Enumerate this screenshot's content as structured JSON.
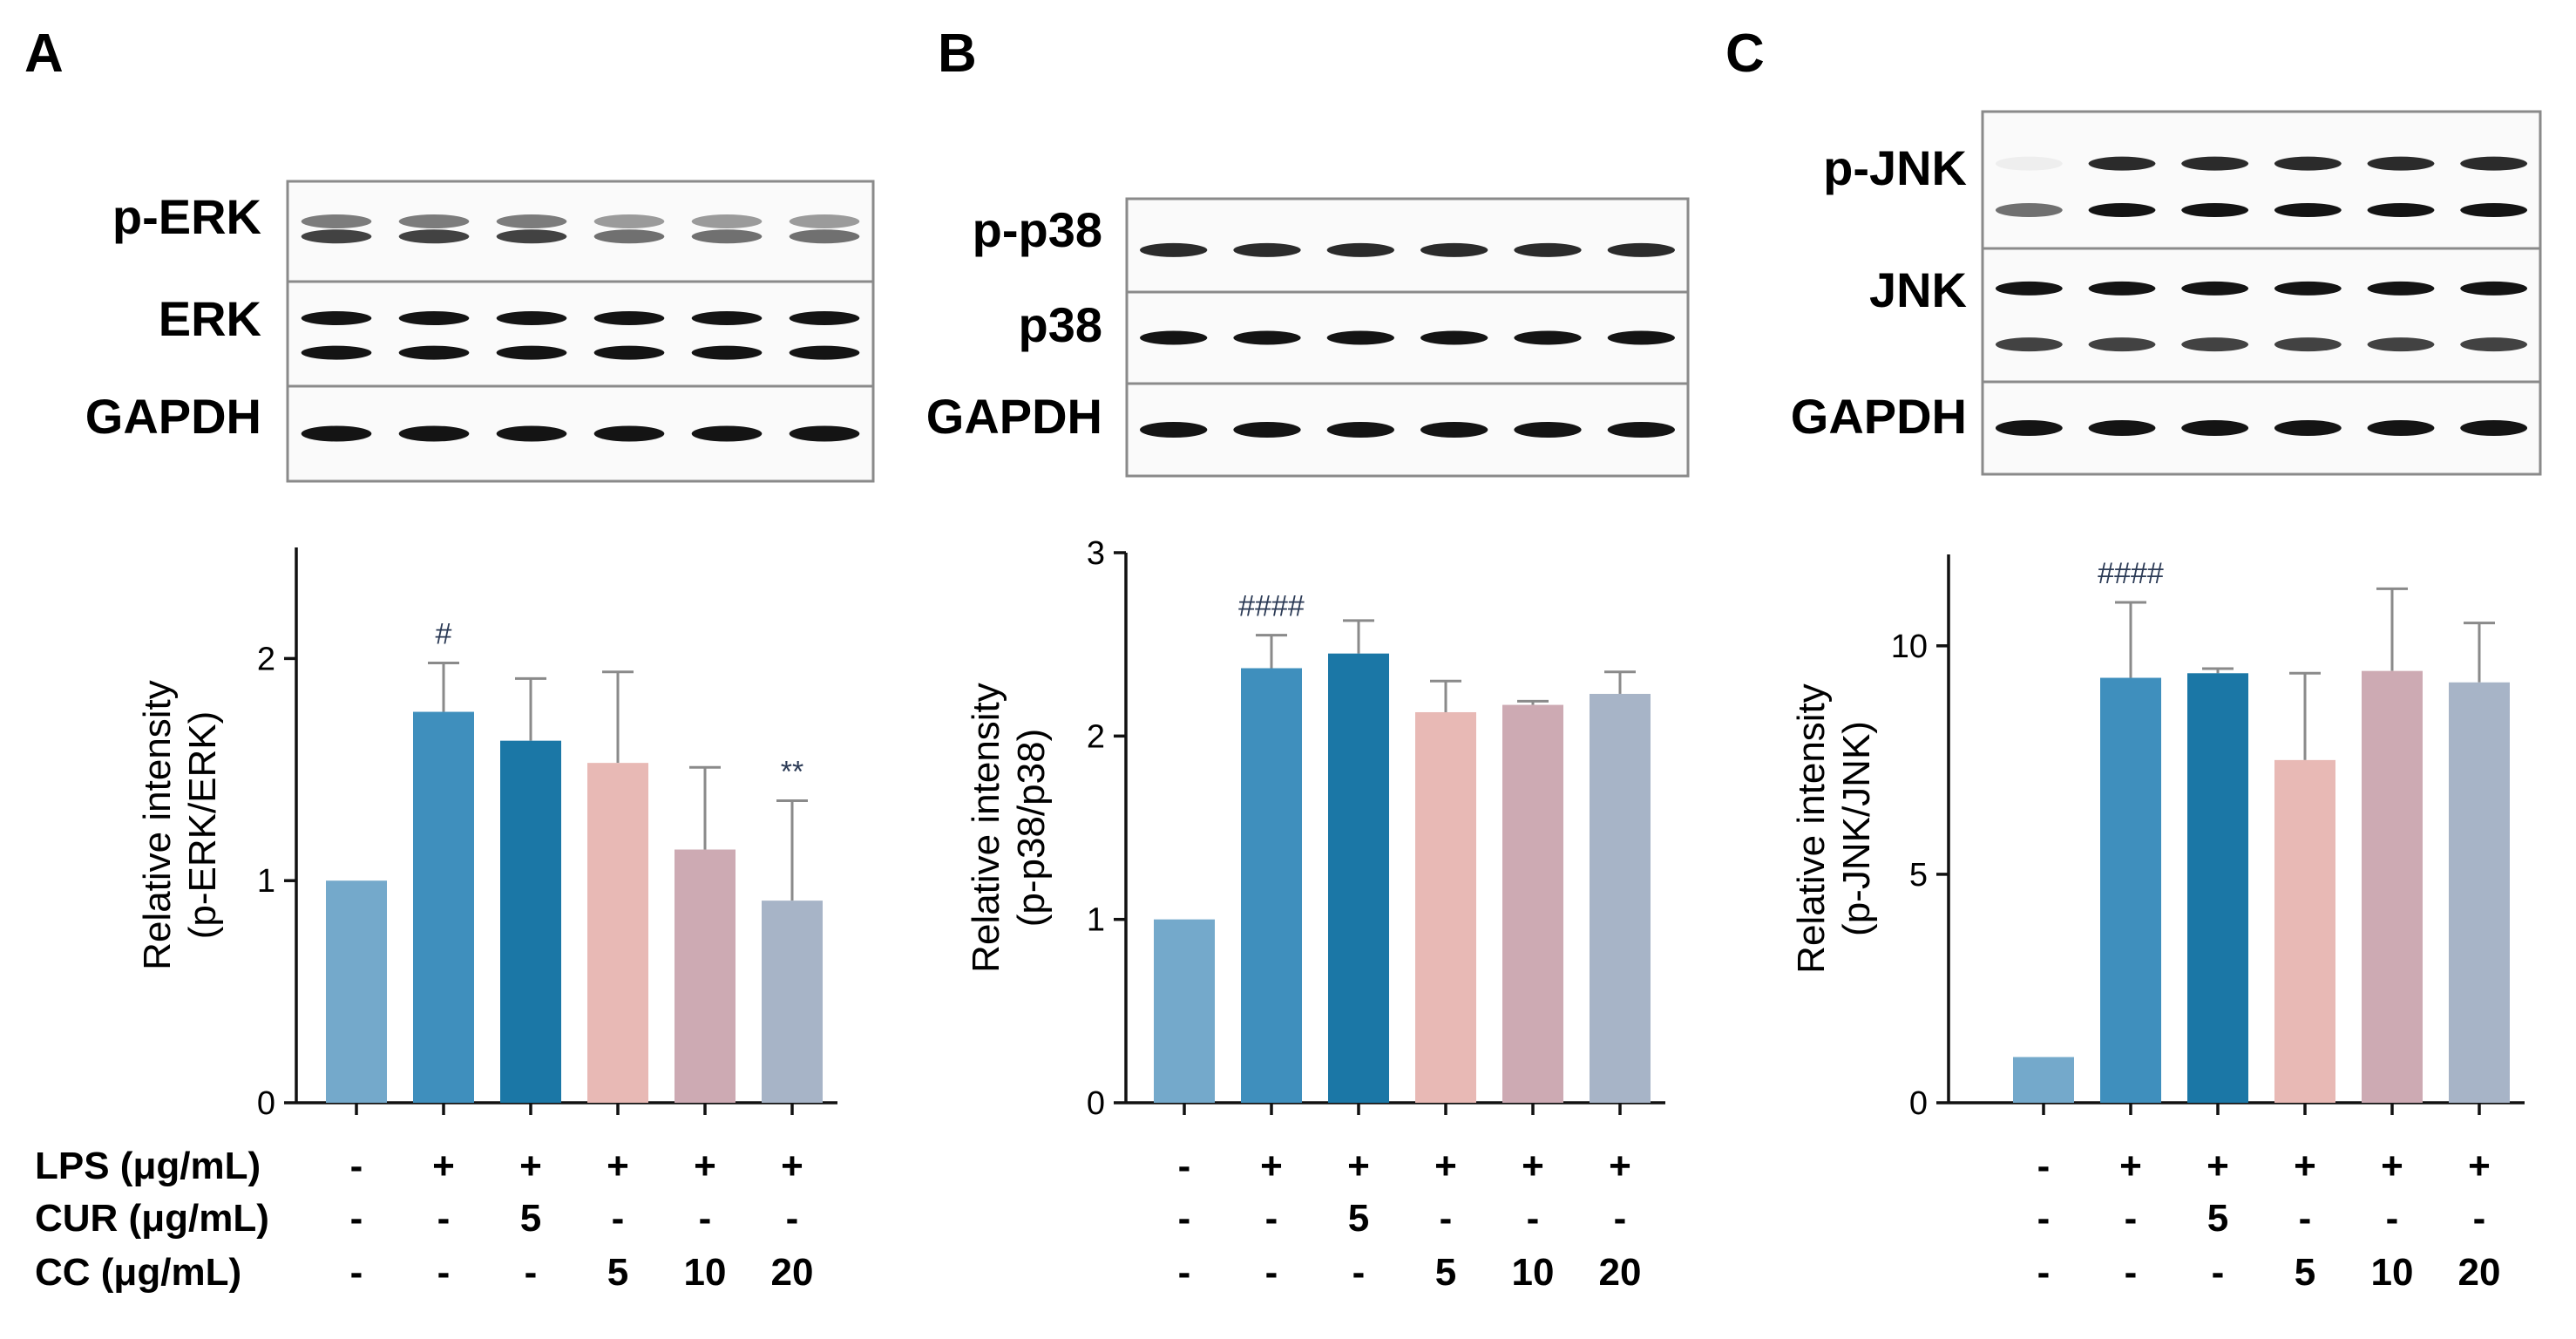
{
  "colors": [
    "#74a9cb",
    "#3f8fbd",
    "#1b77a6",
    "#e8b9b5",
    "#cdaab3",
    "#a7b4c7"
  ],
  "conditions": {
    "labels": [
      "LPS (μg/mL)",
      "CUR (μg/mL)",
      "CC (μg/mL)"
    ],
    "lps": [
      "-",
      "+",
      "+",
      "+",
      "+",
      "+"
    ],
    "cur": [
      "-",
      "-",
      "5",
      "-",
      "-",
      "-"
    ],
    "cc": [
      "-",
      "-",
      "-",
      "5",
      "10",
      "20"
    ]
  },
  "chart_data": [
    {
      "type": "bar",
      "panel": "A",
      "blot_labels": [
        "p-ERK",
        "ERK",
        "GAPDH"
      ],
      "ylabel_lines": [
        "Relative intensity",
        "(p-ERK/ERK)"
      ],
      "ylim": [
        0,
        2.5
      ],
      "yticks": [
        0,
        1,
        2
      ],
      "ytick_labels": [
        "0",
        "1",
        "2"
      ],
      "categories": [
        "Control",
        "LPS",
        "LPS+CUR 5",
        "LPS+CC 5",
        "LPS+CC 10",
        "LPS+CC 20"
      ],
      "values": [
        1.0,
        1.76,
        1.63,
        1.53,
        1.14,
        0.91
      ],
      "errors": [
        0,
        0.22,
        0.28,
        0.41,
        0.37,
        0.45
      ],
      "significance": [
        "",
        "#",
        "",
        "",
        "",
        "**"
      ]
    },
    {
      "type": "bar",
      "panel": "B",
      "blot_labels": [
        "p-p38",
        "p38",
        "GAPDH"
      ],
      "ylabel_lines": [
        "Relative intensity",
        "(p-p38/p38)"
      ],
      "ylim": [
        0,
        3
      ],
      "yticks": [
        0,
        1,
        2,
        3
      ],
      "ytick_labels": [
        "0",
        "1",
        "2",
        "3"
      ],
      "categories": [
        "Control",
        "LPS",
        "LPS+CUR 5",
        "LPS+CC 5",
        "LPS+CC 10",
        "LPS+CC 20"
      ],
      "values": [
        1.0,
        2.37,
        2.45,
        2.13,
        2.17,
        2.23
      ],
      "errors": [
        0,
        0.18,
        0.18,
        0.17,
        0.02,
        0.12
      ],
      "significance": [
        "",
        "####",
        "",
        "",
        "",
        ""
      ]
    },
    {
      "type": "bar",
      "panel": "C",
      "blot_labels": [
        "p-JNK",
        "JNK",
        "GAPDH"
      ],
      "ylabel_lines": [
        "Relative intensity",
        "(p-JNK/JNK)"
      ],
      "ylim": [
        0,
        12
      ],
      "yticks": [
        0,
        5,
        10
      ],
      "ytick_labels": [
        "0",
        "5",
        "10"
      ],
      "categories": [
        "Control",
        "LPS",
        "LPS+CUR 5",
        "LPS+CC 5",
        "LPS+CC 10",
        "LPS+CC 20"
      ],
      "values": [
        1.0,
        9.3,
        9.4,
        7.5,
        9.45,
        9.2
      ],
      "errors": [
        0,
        1.65,
        0.1,
        1.9,
        1.8,
        1.3
      ],
      "significance": [
        "",
        "####",
        "",
        "",
        "",
        ""
      ]
    }
  ]
}
